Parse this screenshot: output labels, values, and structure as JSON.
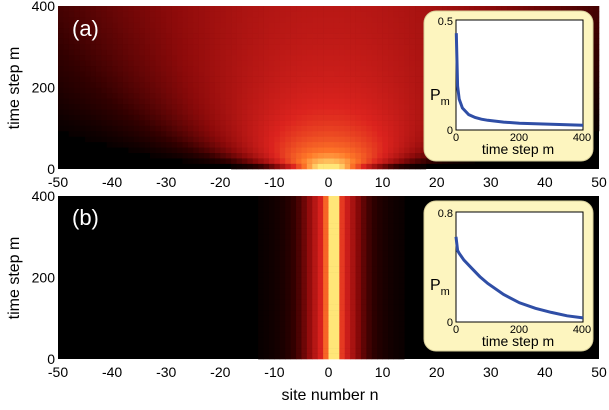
{
  "figure": {
    "xlabel": "site number n",
    "ylabel": "time step m"
  },
  "chart_data": [
    {
      "type": "heatmap",
      "panel_label": "(a)",
      "xlabel": "",
      "ylabel": "time step m",
      "x_ticks": [
        "-50",
        "-40",
        "-30",
        "-20",
        "-10",
        "0",
        "10",
        "20",
        "30",
        "40",
        "50"
      ],
      "y_ticks": [
        "0",
        "200",
        "400"
      ],
      "xlim": [
        -50,
        50
      ],
      "ylim": [
        0,
        400
      ],
      "pattern": "spreading cone from site 0; bright near m=0, width grows with m",
      "colormap": [
        "#000000",
        "#3a0000",
        "#8b0a0a",
        "#e02020",
        "#ff7a20",
        "#ffe070"
      ],
      "inset": {
        "type": "line",
        "xlabel": "time step m",
        "ylabel": "P",
        "ylabel_sub": "m",
        "x_ticks": [
          "0",
          "200",
          "400"
        ],
        "y_ticks": [
          "0",
          "0.5"
        ],
        "xlim": [
          0,
          400
        ],
        "ylim": [
          0,
          0.5
        ],
        "x": [
          1,
          5,
          10,
          20,
          40,
          60,
          80,
          100,
          150,
          200,
          250,
          300,
          350,
          400
        ],
        "y": [
          0.44,
          0.2,
          0.14,
          0.1,
          0.07,
          0.057,
          0.049,
          0.044,
          0.036,
          0.031,
          0.028,
          0.026,
          0.024,
          0.022
        ],
        "line_color": "#2f4ea6",
        "background": "#fdf5bf"
      }
    },
    {
      "type": "heatmap",
      "panel_label": "(b)",
      "xlabel": "site number n",
      "ylabel": "time step m",
      "x_ticks": [
        "-50",
        "-40",
        "-30",
        "-20",
        "-10",
        "0",
        "10",
        "20",
        "30",
        "40",
        "50"
      ],
      "y_ticks": [
        "0",
        "200",
        "400"
      ],
      "xlim": [
        -50,
        50
      ],
      "ylim": [
        0,
        400
      ],
      "pattern": "localized column at sites 0-1 with faint side bands",
      "colormap": [
        "#000000",
        "#3a0000",
        "#8b0a0a",
        "#e02020",
        "#ff7a20",
        "#ffe070"
      ],
      "inset": {
        "type": "line",
        "xlabel": "time step m",
        "ylabel": "P",
        "ylabel_sub": "m",
        "x_ticks": [
          "0",
          "200",
          "400"
        ],
        "y_ticks": [
          "0",
          "0.8"
        ],
        "xlim": [
          0,
          400
        ],
        "ylim": [
          0,
          0.8
        ],
        "x": [
          0,
          5,
          10,
          25,
          50,
          75,
          100,
          150,
          200,
          250,
          300,
          350,
          400
        ],
        "y": [
          0.62,
          0.52,
          0.5,
          0.45,
          0.39,
          0.33,
          0.28,
          0.2,
          0.14,
          0.1,
          0.07,
          0.045,
          0.03
        ],
        "line_color": "#2f4ea6",
        "background": "#fdf5bf"
      }
    }
  ]
}
